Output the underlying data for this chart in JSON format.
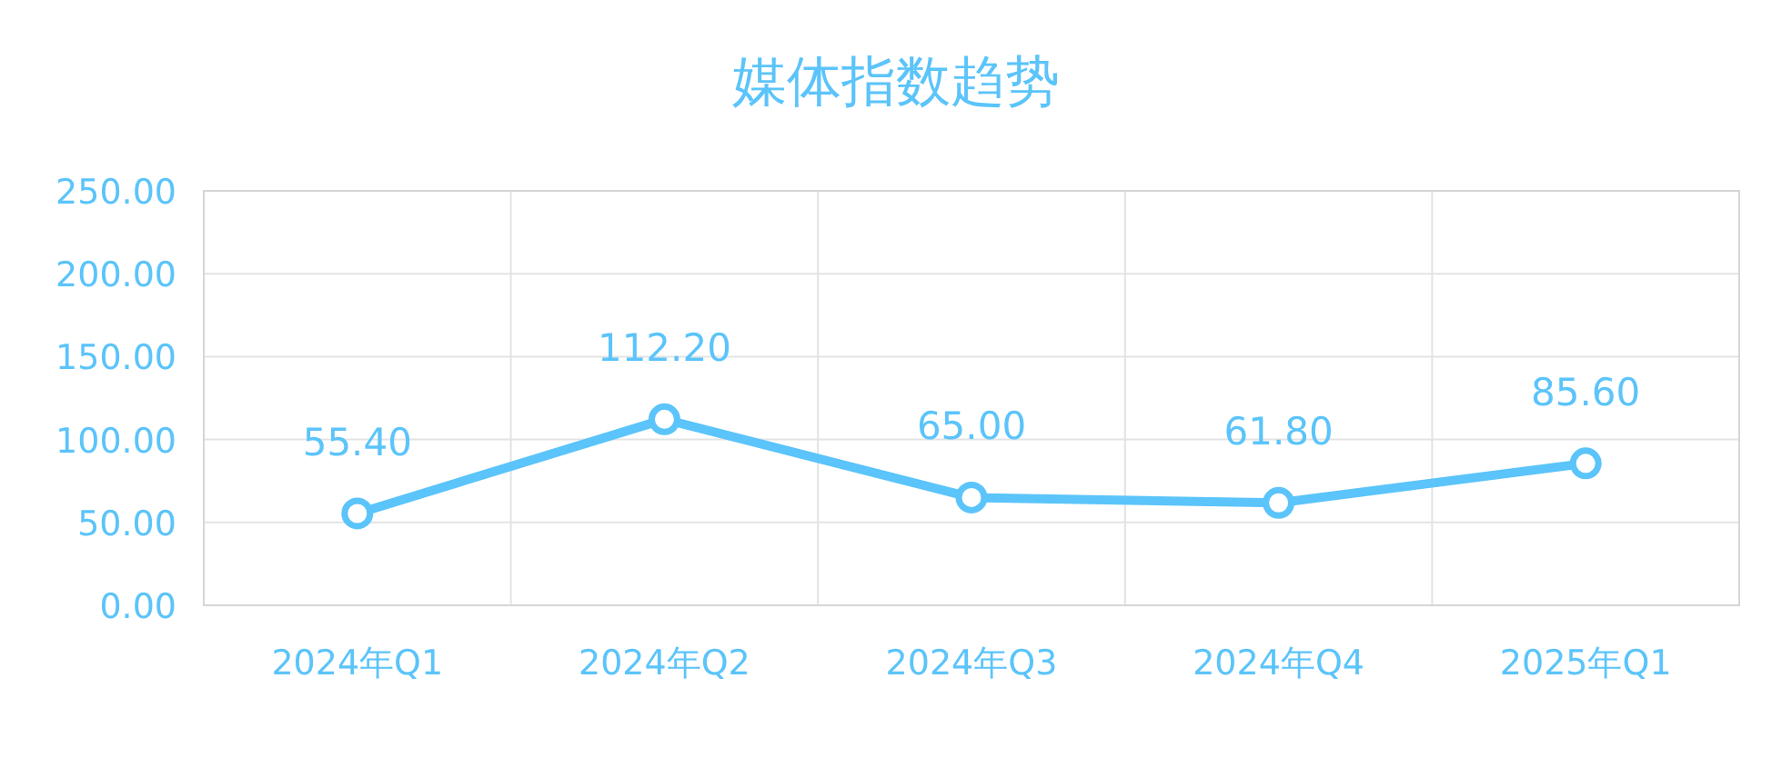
{
  "chart_data": {
    "type": "line",
    "title": "媒体指数趋势",
    "categories": [
      "2024年Q1",
      "2024年Q2",
      "2024年Q3",
      "2024年Q4",
      "2025年Q1"
    ],
    "series": [
      {
        "color": "#5bc4fa",
        "values": [
          55.4,
          112.2,
          65.0,
          61.8,
          85.6
        ],
        "value_labels": [
          "55.40",
          "112.20",
          "65.00",
          "61.80",
          "85.60"
        ]
      }
    ],
    "ylim": [
      0,
      250
    ],
    "yticks": [
      {
        "value": 0,
        "label": "0.00"
      },
      {
        "value": 50,
        "label": "50.00"
      },
      {
        "value": 100,
        "label": "100.00"
      },
      {
        "value": 150,
        "label": "150.00"
      },
      {
        "value": 200,
        "label": "200.00"
      },
      {
        "value": 250,
        "label": "250.00"
      }
    ],
    "grid": true,
    "marker": "circle",
    "line_style": "solid"
  }
}
